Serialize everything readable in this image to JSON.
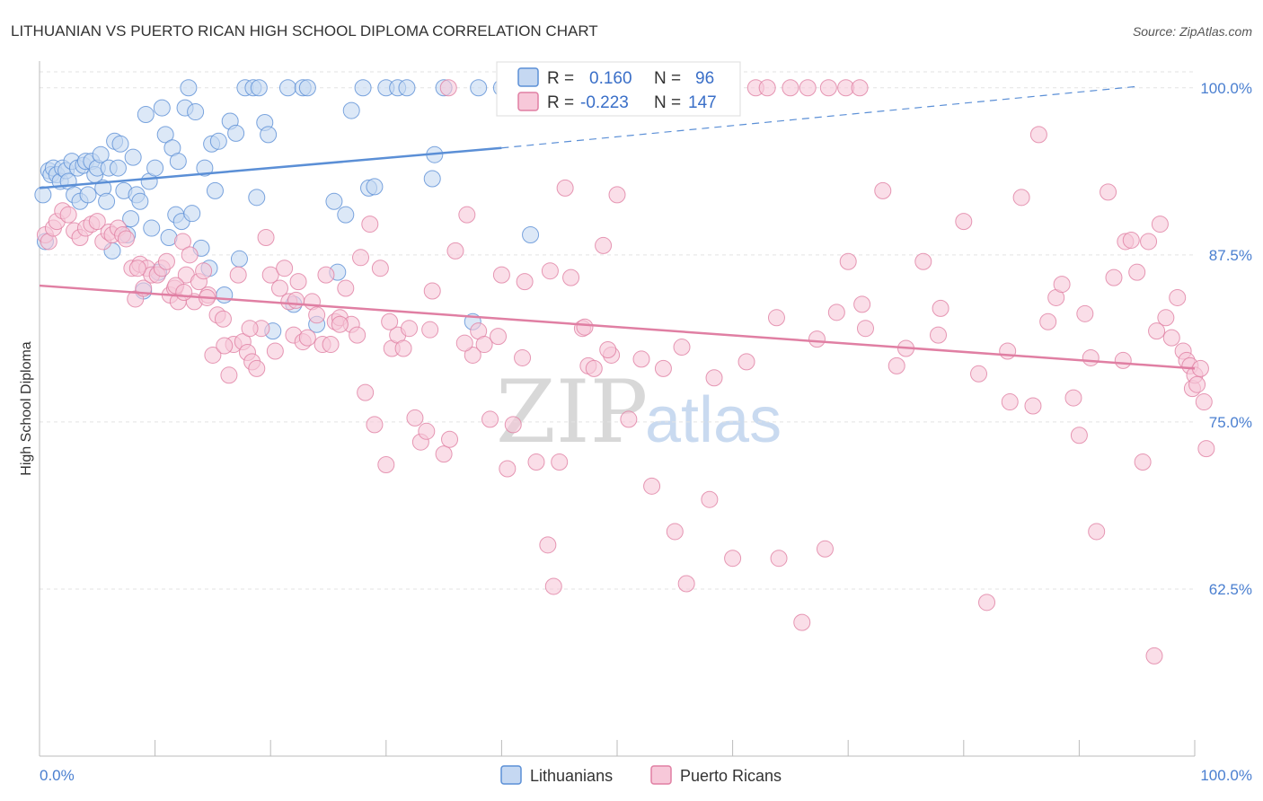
{
  "chart_data": {
    "type": "scatter",
    "title": "LITHUANIAN VS PUERTO RICAN HIGH SCHOOL DIPLOMA CORRELATION CHART",
    "source": "Source: ZipAtlas.com",
    "xlabel": "",
    "ylabel": "High School Diploma",
    "xlim": [
      0,
      100
    ],
    "ylim": [
      50,
      102
    ],
    "x_tick_labels": [
      "0.0%",
      "100.0%"
    ],
    "y_ticks": [
      {
        "value": 100,
        "label": "100.0%"
      },
      {
        "value": 87.5,
        "label": "87.5%"
      },
      {
        "value": 75,
        "label": "75.0%"
      },
      {
        "value": 62.5,
        "label": "62.5%"
      }
    ],
    "grid": true,
    "legend_position": "top-center",
    "stats": [
      {
        "r_label": "R =",
        "r_value": "0.160",
        "n_label": "N =",
        "n_value": "96"
      },
      {
        "r_label": "R =",
        "r_value": "-0.223",
        "n_label": "N =",
        "n_value": "147"
      }
    ],
    "series": [
      {
        "name": "Lithuanians",
        "color": "#5b8fd6",
        "fill": "#c5d8f2",
        "trend": {
          "x0": 0,
          "y0": 92.5,
          "x1": 40,
          "y1": 95.5,
          "dash_to_x": 95,
          "dash_to_y": 100.1
        },
        "points": [
          [
            0.3,
            92
          ],
          [
            0.5,
            88.5
          ],
          [
            0.8,
            93.8
          ],
          [
            1,
            93.5
          ],
          [
            1.2,
            94
          ],
          [
            1.5,
            93.5
          ],
          [
            1.8,
            93
          ],
          [
            2,
            94
          ],
          [
            2.3,
            93.8
          ],
          [
            2.5,
            93
          ],
          [
            2.8,
            94.5
          ],
          [
            3,
            92
          ],
          [
            3.3,
            94
          ],
          [
            3.5,
            91.5
          ],
          [
            3.8,
            94.2
          ],
          [
            4,
            94.5
          ],
          [
            4.2,
            92
          ],
          [
            4.5,
            94.5
          ],
          [
            4.8,
            93.5
          ],
          [
            5,
            94
          ],
          [
            5.3,
            95
          ],
          [
            5.5,
            92.5
          ],
          [
            5.8,
            91.5
          ],
          [
            6,
            94
          ],
          [
            6.3,
            87.8
          ],
          [
            6.5,
            96
          ],
          [
            6.8,
            94
          ],
          [
            7,
            95.8
          ],
          [
            7.3,
            92.3
          ],
          [
            7.6,
            89
          ],
          [
            7.9,
            90.2
          ],
          [
            8.1,
            94.8
          ],
          [
            8.4,
            92
          ],
          [
            8.7,
            91.5
          ],
          [
            9,
            84.8
          ],
          [
            9.2,
            98
          ],
          [
            9.5,
            93
          ],
          [
            9.7,
            89.5
          ],
          [
            10,
            94
          ],
          [
            10.3,
            86.2
          ],
          [
            10.6,
            98.5
          ],
          [
            10.9,
            96.5
          ],
          [
            11.2,
            88.8
          ],
          [
            11.5,
            95.5
          ],
          [
            11.8,
            90.5
          ],
          [
            12,
            94.5
          ],
          [
            12.3,
            90
          ],
          [
            12.6,
            98.5
          ],
          [
            12.9,
            100
          ],
          [
            13.2,
            90.6
          ],
          [
            13.5,
            98.2
          ],
          [
            14,
            88
          ],
          [
            14.3,
            94
          ],
          [
            14.7,
            86.5
          ],
          [
            14.9,
            95.8
          ],
          [
            15.2,
            92.3
          ],
          [
            15.5,
            96
          ],
          [
            16,
            84.5
          ],
          [
            16.5,
            97.5
          ],
          [
            17,
            96.6
          ],
          [
            17.3,
            87.2
          ],
          [
            17.8,
            100
          ],
          [
            18.5,
            100
          ],
          [
            18.8,
            91.8
          ],
          [
            19,
            100
          ],
          [
            19.5,
            97.4
          ],
          [
            19.8,
            96.5
          ],
          [
            20.2,
            81.8
          ],
          [
            21.5,
            100
          ],
          [
            22,
            83.8
          ],
          [
            22.8,
            100
          ],
          [
            23.2,
            100
          ],
          [
            24,
            82.3
          ],
          [
            25.5,
            91.5
          ],
          [
            25.8,
            86.2
          ],
          [
            26.5,
            90.5
          ],
          [
            27,
            98.3
          ],
          [
            28,
            100
          ],
          [
            28.5,
            92.5
          ],
          [
            29,
            92.6
          ],
          [
            30,
            100
          ],
          [
            31,
            100
          ],
          [
            31.8,
            100
          ],
          [
            34,
            93.2
          ],
          [
            34.2,
            95
          ],
          [
            35,
            100
          ],
          [
            37.5,
            82.5
          ],
          [
            38,
            100
          ],
          [
            40,
            100
          ],
          [
            41,
            100
          ],
          [
            41.2,
            100
          ],
          [
            42.5,
            89
          ],
          [
            45.5,
            100
          ]
        ]
      },
      {
        "name": "Puerto Ricans",
        "color": "#e07fa3",
        "fill": "#f7c8d9",
        "trend": {
          "x0": 0,
          "y0": 85.2,
          "x1": 100,
          "y1": 79
        },
        "points": [
          [
            0.5,
            89
          ],
          [
            0.8,
            88.5
          ],
          [
            1.2,
            89.5
          ],
          [
            1.5,
            90
          ],
          [
            2,
            90.8
          ],
          [
            2.5,
            90.5
          ],
          [
            3,
            89.3
          ],
          [
            3.5,
            88.8
          ],
          [
            4,
            89.5
          ],
          [
            4.5,
            89.8
          ],
          [
            5,
            90
          ],
          [
            5.5,
            88.5
          ],
          [
            6,
            89.2
          ],
          [
            6.3,
            89
          ],
          [
            6.8,
            89.5
          ],
          [
            7.2,
            89
          ],
          [
            7.5,
            88.7
          ],
          [
            8,
            86.5
          ],
          [
            8.3,
            84.2
          ],
          [
            8.7,
            86.8
          ],
          [
            9,
            85
          ],
          [
            9.3,
            86.5
          ],
          [
            9.7,
            86
          ],
          [
            10.2,
            86
          ],
          [
            10.6,
            86.5
          ],
          [
            11,
            87
          ],
          [
            11.3,
            84.5
          ],
          [
            11.7,
            85
          ],
          [
            12,
            84
          ],
          [
            12.4,
            88.5
          ],
          [
            12.7,
            86
          ],
          [
            13,
            87.5
          ],
          [
            13.4,
            84
          ],
          [
            13.8,
            85.5
          ],
          [
            14.2,
            86.3
          ],
          [
            14.6,
            84.5
          ],
          [
            15,
            80
          ],
          [
            15.4,
            83
          ],
          [
            15.9,
            82.7
          ],
          [
            16.4,
            78.5
          ],
          [
            16.8,
            80.8
          ],
          [
            17.2,
            86
          ],
          [
            17.6,
            81
          ],
          [
            18,
            80.2
          ],
          [
            18.4,
            79.5
          ],
          [
            18.8,
            79
          ],
          [
            19.2,
            82
          ],
          [
            19.6,
            88.8
          ],
          [
            20,
            86
          ],
          [
            20.4,
            80.3
          ],
          [
            20.8,
            85
          ],
          [
            21.2,
            86.5
          ],
          [
            21.6,
            84
          ],
          [
            22,
            81.5
          ],
          [
            22.4,
            85.5
          ],
          [
            22.8,
            81
          ],
          [
            23.2,
            81.3
          ],
          [
            23.6,
            84
          ],
          [
            24,
            83
          ],
          [
            24.5,
            80.8
          ],
          [
            24.8,
            86
          ],
          [
            25.2,
            80.8
          ],
          [
            25.6,
            82.5
          ],
          [
            26,
            82.8
          ],
          [
            26.5,
            85
          ],
          [
            27,
            82.3
          ],
          [
            27.5,
            81.5
          ],
          [
            27.8,
            87.3
          ],
          [
            28.2,
            77.2
          ],
          [
            28.6,
            89.8
          ],
          [
            29,
            74.8
          ],
          [
            29.5,
            86.5
          ],
          [
            30,
            71.8
          ],
          [
            30.5,
            80.5
          ],
          [
            31,
            81.5
          ],
          [
            31.5,
            80.5
          ],
          [
            32,
            82
          ],
          [
            32.5,
            75.3
          ],
          [
            33,
            73.5
          ],
          [
            33.5,
            74.3
          ],
          [
            34,
            84.8
          ],
          [
            35,
            72.6
          ],
          [
            35.5,
            73.7
          ],
          [
            36,
            87.8
          ],
          [
            37,
            90.5
          ],
          [
            37.5,
            80
          ],
          [
            38,
            81.8
          ],
          [
            38.5,
            80.8
          ],
          [
            39,
            75.2
          ],
          [
            40,
            86
          ],
          [
            40.5,
            71.5
          ],
          [
            41,
            74.8
          ],
          [
            42,
            85.5
          ],
          [
            43,
            72
          ],
          [
            44,
            65.8
          ],
          [
            44.5,
            62.7
          ],
          [
            45,
            72
          ],
          [
            45.5,
            92.5
          ],
          [
            46,
            85.8
          ],
          [
            47,
            82
          ],
          [
            47.5,
            79.2
          ],
          [
            48,
            79
          ],
          [
            48.8,
            88.2
          ],
          [
            49.5,
            80
          ],
          [
            50,
            92
          ],
          [
            51,
            75.2
          ],
          [
            53,
            70.2
          ],
          [
            54,
            79
          ],
          [
            55,
            66.8
          ],
          [
            56,
            62.9
          ],
          [
            58,
            69.2
          ],
          [
            60,
            64.8
          ],
          [
            62,
            100
          ],
          [
            64,
            64.8
          ],
          [
            66,
            60
          ],
          [
            68,
            65.5
          ],
          [
            69,
            83.2
          ],
          [
            70,
            87
          ],
          [
            71.5,
            82
          ],
          [
            73,
            92.3
          ],
          [
            75,
            80.5
          ],
          [
            76.5,
            87
          ],
          [
            78,
            83.5
          ],
          [
            80,
            90
          ],
          [
            82,
            61.5
          ],
          [
            84,
            76.5
          ],
          [
            85,
            91.8
          ],
          [
            86,
            76.2
          ],
          [
            86.5,
            96.5
          ],
          [
            88,
            84.3
          ],
          [
            88.5,
            85.3
          ],
          [
            89.5,
            76.8
          ],
          [
            90,
            74
          ],
          [
            91,
            79.8
          ],
          [
            91.5,
            66.8
          ],
          [
            92.5,
            92.2
          ],
          [
            93,
            85.8
          ],
          [
            94,
            88.5
          ],
          [
            94.5,
            88.6
          ],
          [
            95,
            86.2
          ],
          [
            95.5,
            72
          ],
          [
            96,
            88.5
          ],
          [
            96.5,
            57.5
          ],
          [
            97,
            89.8
          ],
          [
            97.5,
            82.8
          ],
          [
            98,
            81.3
          ],
          [
            98.5,
            84.3
          ],
          [
            99,
            80.3
          ],
          [
            99.3,
            79.6
          ],
          [
            99.6,
            79.2
          ],
          [
            99.8,
            77.5
          ],
          [
            100,
            78.5
          ],
          [
            100.2,
            77.8
          ],
          [
            100.5,
            79
          ],
          [
            100.8,
            76.5
          ],
          [
            101,
            73
          ],
          [
            8.5,
            86.5
          ],
          [
            11.8,
            85.2
          ],
          [
            12.5,
            84.7
          ],
          [
            14.5,
            84.3
          ],
          [
            16,
            80.7
          ],
          [
            18.2,
            82
          ],
          [
            22.2,
            84.1
          ],
          [
            26,
            82.3
          ],
          [
            30.3,
            82.5
          ],
          [
            33.8,
            81.9
          ],
          [
            36.8,
            80.9
          ],
          [
            39.7,
            81.4
          ],
          [
            41.8,
            79.8
          ],
          [
            44.2,
            86.3
          ],
          [
            47.2,
            82.1
          ],
          [
            49.2,
            80.4
          ],
          [
            52.1,
            79.7
          ],
          [
            55.6,
            80.6
          ],
          [
            58.4,
            78.3
          ],
          [
            61.2,
            79.5
          ],
          [
            63.8,
            82.8
          ],
          [
            67.3,
            81.2
          ],
          [
            71.2,
            83.8
          ],
          [
            74.2,
            79.2
          ],
          [
            77.8,
            81.5
          ],
          [
            81.3,
            78.6
          ],
          [
            83.8,
            80.3
          ],
          [
            87.3,
            82.5
          ],
          [
            90.5,
            83.1
          ],
          [
            93.8,
            79.6
          ],
          [
            96.7,
            81.8
          ],
          [
            63,
            100
          ],
          [
            65,
            100
          ],
          [
            66.5,
            100
          ],
          [
            68.3,
            100
          ],
          [
            69.8,
            100
          ],
          [
            71,
            100
          ],
          [
            35.4,
            100
          ]
        ]
      }
    ]
  }
}
